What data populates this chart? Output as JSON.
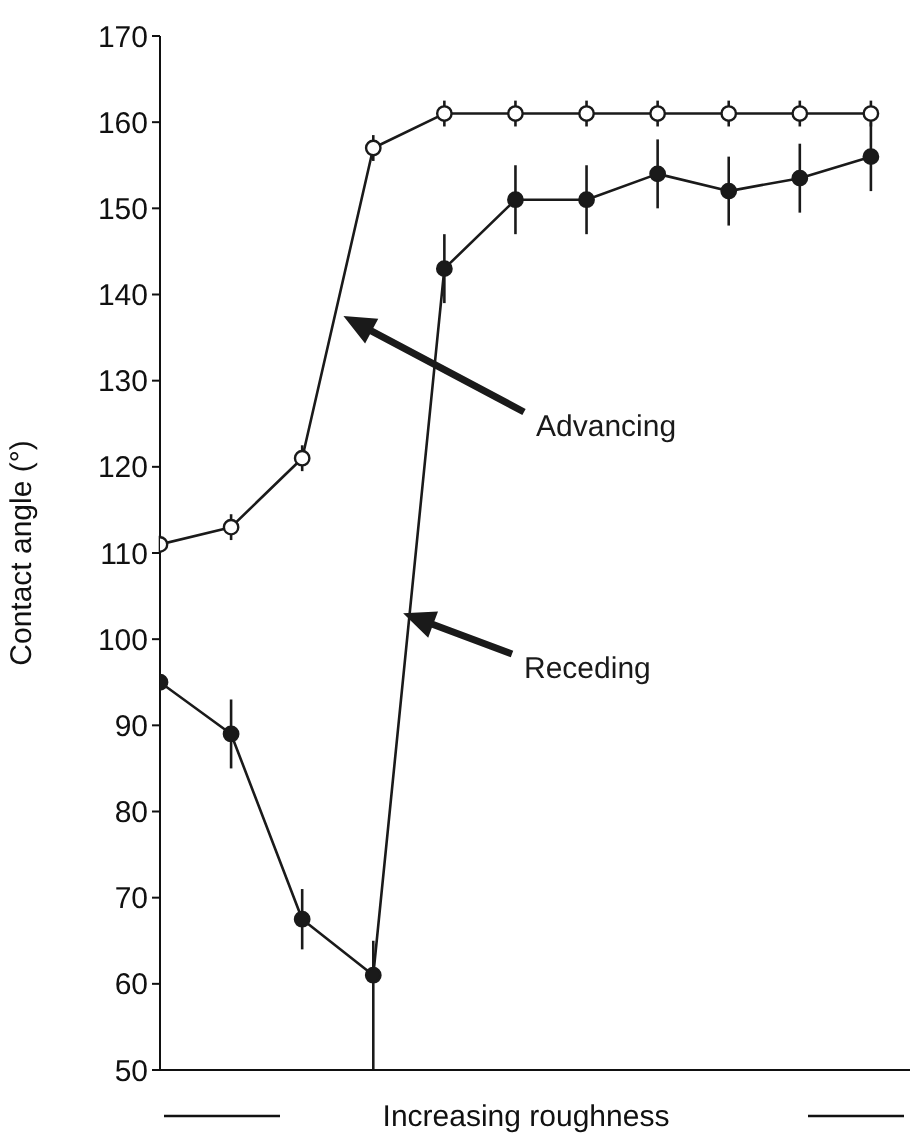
{
  "chart_data": {
    "type": "line",
    "ylabel": "Contact angle (°)",
    "xlabel": "Increasing roughness",
    "categories": [
      null,
      null,
      null,
      null,
      null,
      null,
      null,
      null,
      null,
      null,
      null
    ],
    "series": [
      {
        "color": "#1a1a1a",
        "values": [
          111,
          113,
          121,
          157,
          161,
          161,
          161,
          161,
          161,
          161,
          161
        ],
        "errors": [
          1,
          1.5,
          1.5,
          1.5,
          1.5,
          1.5,
          1.5,
          1.5,
          1.5,
          1.5,
          1.5
        ]
      },
      {
        "color": "#1a1a1a",
        "values": [
          95,
          89,
          67.5,
          61,
          143,
          151,
          151,
          154,
          152,
          153.5,
          156
        ],
        "errors": [
          null,
          4,
          3.5,
          [
            50,
            65
          ],
          4,
          4,
          4,
          4,
          4,
          4,
          4
        ]
      }
    ],
    "annotations": [
      "Advancing",
      "Receding"
    ],
    "ylim": [
      50,
      170
    ],
    "yticks": [
      50,
      60,
      70,
      80,
      90,
      100,
      110,
      120,
      130,
      140,
      150,
      160,
      170
    ],
    "marker": "circle",
    "line_style": "solid"
  }
}
